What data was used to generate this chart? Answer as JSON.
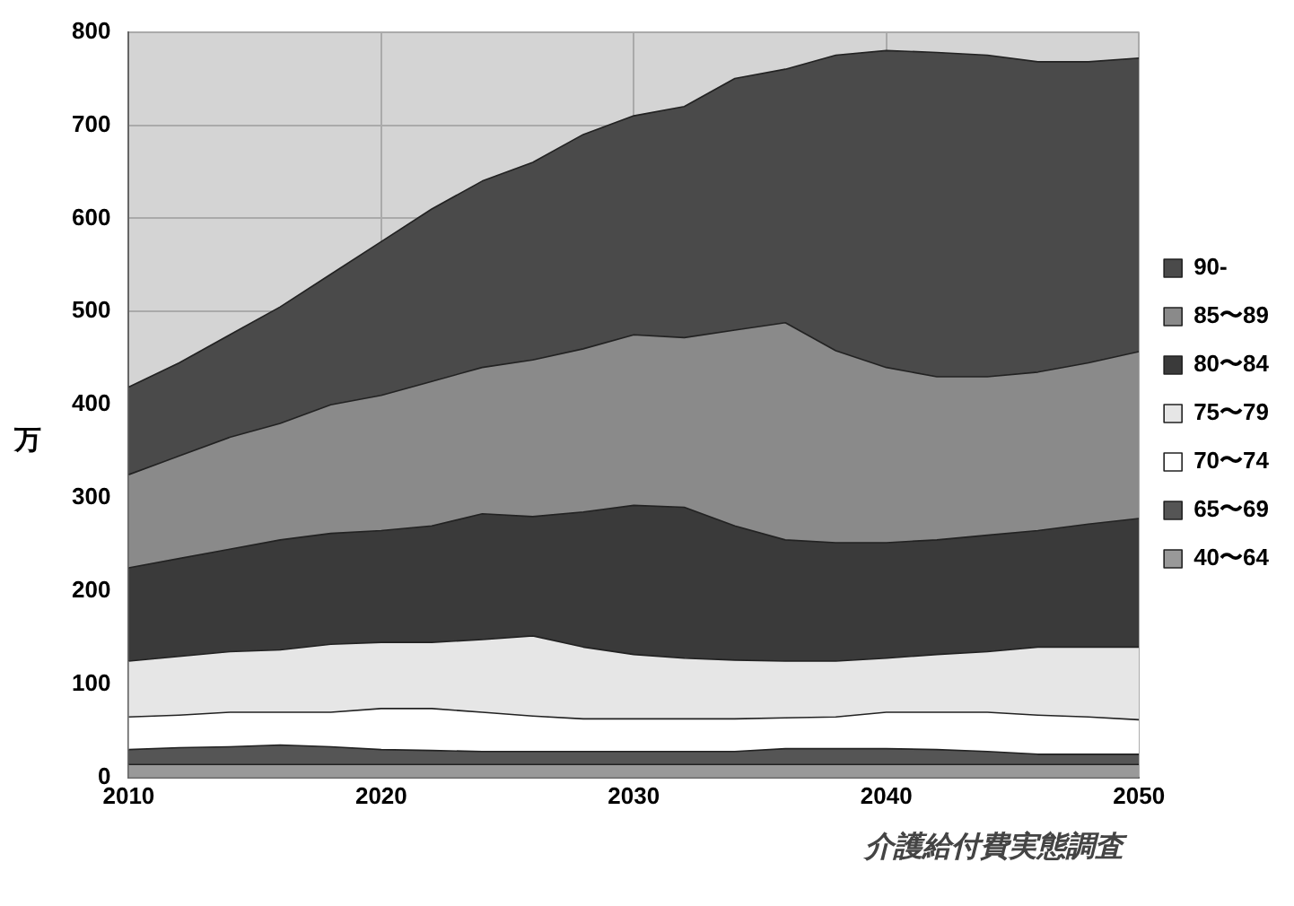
{
  "chart_data": {
    "type": "area",
    "stacked": true,
    "ylabel": "万",
    "annotations": [
      "介護給付費実態調査"
    ],
    "x": [
      2010,
      2012,
      2014,
      2016,
      2018,
      2020,
      2022,
      2024,
      2026,
      2028,
      2030,
      2032,
      2034,
      2036,
      2038,
      2040,
      2042,
      2044,
      2046,
      2048,
      2050
    ],
    "xlim": [
      2010,
      2050
    ],
    "xticks": [
      2010,
      2020,
      2030,
      2040,
      2050
    ],
    "ylim": [
      0,
      800
    ],
    "yticks": [
      0,
      100,
      200,
      300,
      400,
      500,
      600,
      700,
      800
    ],
    "grid": true,
    "legend": "right",
    "series": [
      {
        "name": "40〜64",
        "color": "#999999",
        "values": [
          14,
          14,
          14,
          14,
          14,
          14,
          14,
          14,
          14,
          14,
          14,
          14,
          14,
          14,
          14,
          14,
          14,
          14,
          14,
          14,
          14
        ]
      },
      {
        "name": "65〜69",
        "color": "#555555",
        "values": [
          16,
          18,
          19,
          21,
          19,
          16,
          15,
          14,
          14,
          14,
          14,
          14,
          14,
          17,
          17,
          17,
          16,
          14,
          11,
          11,
          11
        ]
      },
      {
        "name": "70〜74",
        "color": "#ffffff",
        "values": [
          35,
          35,
          37,
          35,
          37,
          44,
          45,
          42,
          38,
          35,
          35,
          35,
          35,
          33,
          34,
          39,
          40,
          42,
          42,
          40,
          37
        ]
      },
      {
        "name": "75〜79",
        "color": "#e6e6e6",
        "values": [
          60,
          63,
          65,
          67,
          73,
          71,
          71,
          78,
          86,
          77,
          69,
          65,
          63,
          61,
          60,
          58,
          62,
          65,
          73,
          75,
          78
        ]
      },
      {
        "name": "80〜84",
        "color": "#3a3a3a",
        "values": [
          100,
          105,
          110,
          118,
          119,
          120,
          125,
          135,
          128,
          145,
          160,
          162,
          144,
          130,
          127,
          124,
          123,
          125,
          125,
          132,
          138
        ]
      },
      {
        "name": "85〜89",
        "color": "#8a8a8a",
        "values": [
          100,
          110,
          120,
          125,
          138,
          145,
          155,
          157,
          168,
          175,
          183,
          182,
          210,
          233,
          206,
          188,
          175,
          170,
          170,
          173,
          179
        ]
      },
      {
        "name": "90-",
        "color": "#4a4a4a",
        "values": [
          94,
          100,
          110,
          125,
          140,
          165,
          185,
          200,
          212,
          230,
          235,
          248,
          270,
          272,
          317,
          340,
          348,
          345,
          333,
          323,
          315
        ]
      }
    ]
  }
}
